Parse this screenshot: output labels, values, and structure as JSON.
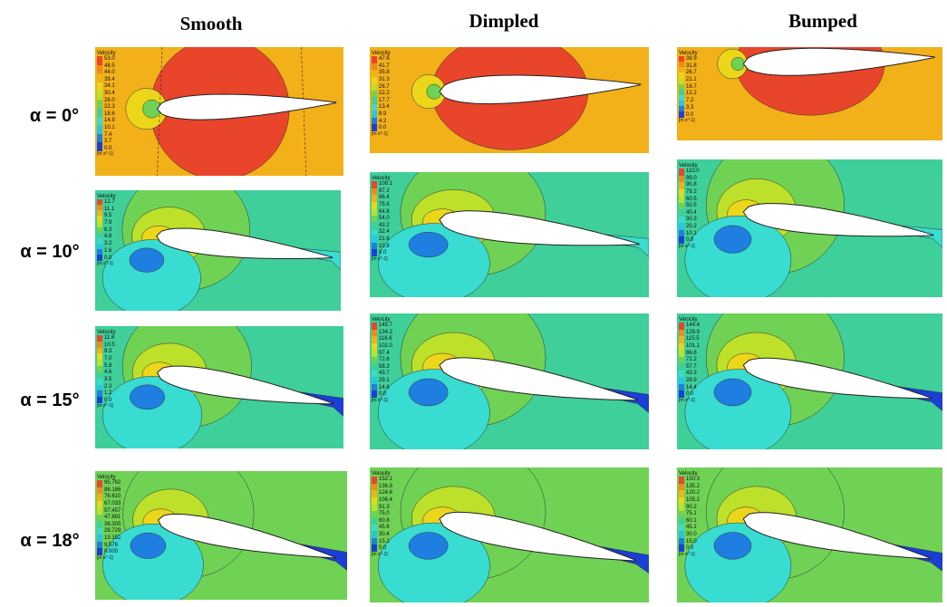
{
  "columns": [
    "Smooth",
    "Dimpled",
    "Bumped"
  ],
  "rows": [
    "α = 0°",
    "α = 10°",
    "α = 15°",
    "α = 18°"
  ],
  "legend_title": "Velocity",
  "legend_unit": "[m s^-1]",
  "palette": [
    "#e8452a",
    "#f08a1e",
    "#f2b019",
    "#ecd61a",
    "#bde02a",
    "#6fd255",
    "#3fcf9a",
    "#38dcd0",
    "#26c6e6",
    "#1f7fe0",
    "#1a3fd6"
  ],
  "legends": [
    [
      [
        "53.0",
        "48.5",
        "44.0",
        "39.4",
        "34.1",
        "30.4",
        "26.0",
        "22.3",
        "18.6",
        "14.9",
        "10.1",
        "7.4",
        "3.7",
        "0.0"
      ],
      [
        "47.6",
        "41.7",
        "35.8",
        "31.3",
        "26.7",
        "22.2",
        "17.7",
        "13.4",
        "8.9",
        "4.2",
        "0.0"
      ],
      [
        "38.9",
        "31.8",
        "26.7",
        "21.1",
        "16.7",
        "12.2",
        "7.2",
        "3.3",
        "0.0"
      ]
    ],
    [
      [
        "12.7",
        "11.1",
        "9.5",
        "7.9",
        "6.3",
        "4.8",
        "3.2",
        "1.6",
        "0.0"
      ],
      [
        "108.1",
        "97.2",
        "86.4",
        "75.6",
        "64.8",
        "54.0",
        "43.2",
        "32.4",
        "21.6",
        "10.8",
        "0.0"
      ],
      [
        "110.0",
        "99.0",
        "90.8",
        "79.2",
        "60.5",
        "50.5",
        "40.4",
        "30.3",
        "20.2",
        "10.1",
        "0.0"
      ]
    ],
    [
      [
        "11.6",
        "10.5",
        "9.3",
        "7.0",
        "5.8",
        "4.6",
        "3.5",
        "2.3",
        "1.2",
        "0.0"
      ],
      [
        "145.7",
        "134.2",
        "116.6",
        "102.0",
        "87.4",
        "72.8",
        "58.3",
        "43.7",
        "29.1",
        "14.6",
        "0.0"
      ],
      [
        "144.4",
        "129.9",
        "115.5",
        "101.1",
        "86.6",
        "72.2",
        "57.7",
        "43.3",
        "28.9",
        "14.4",
        "0.0"
      ]
    ],
    [
      [
        "95.762",
        "86.186",
        "76.610",
        "67.033",
        "57.457",
        "47.881",
        "38.305",
        "28.729",
        "19.152",
        "9.576",
        "0.000"
      ],
      [
        "152.1",
        "136.9",
        "124.6",
        "106.4",
        "91.3",
        "75.0",
        "60.8",
        "45.6",
        "30.4",
        "15.2",
        "0.0"
      ],
      [
        "150.3",
        "135.2",
        "120.2",
        "105.2",
        "90.2",
        "75.1",
        "60.1",
        "45.1",
        "30.0",
        "15.0",
        "0.0"
      ]
    ]
  ]
}
